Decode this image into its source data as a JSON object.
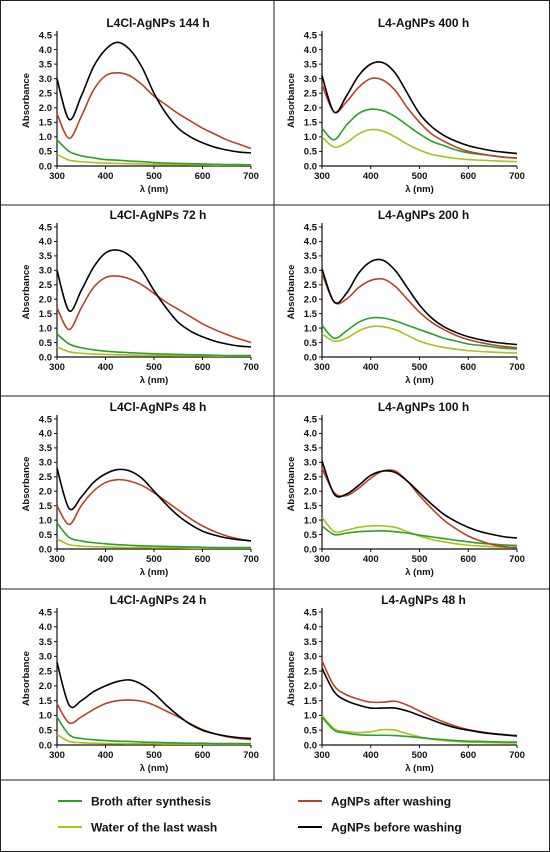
{
  "legend": [
    {
      "label": "Broth after synthesis",
      "color": "#2aa02a",
      "series": "broth"
    },
    {
      "label": "AgNPs after washing",
      "color": "#b5432a",
      "series": "after"
    },
    {
      "label": "Water of the last wash",
      "color": "#a8c020",
      "series": "water"
    },
    {
      "label": "AgNPs before washing",
      "color": "#000000",
      "series": "before"
    }
  ],
  "chart_data": [
    {
      "type": "line",
      "title": "L4Cl-AgNPs 144 h",
      "xlabel": "λ (nm)",
      "ylabel": "Absorbance",
      "xlim": [
        300,
        700
      ],
      "ylim": [
        0,
        4.5
      ],
      "xticks": [
        300,
        400,
        500,
        600,
        700
      ],
      "yticks": [
        0.0,
        0.5,
        1.0,
        1.5,
        2.0,
        2.5,
        3.0,
        3.5,
        4.0,
        4.5
      ],
      "x": [
        300,
        325,
        350,
        375,
        400,
        425,
        450,
        475,
        500,
        525,
        550,
        575,
        600,
        625,
        650,
        675,
        700
      ],
      "series": [
        {
          "name": "AgNPs before washing",
          "key": "before",
          "values": [
            3.0,
            1.6,
            2.4,
            3.4,
            4.0,
            4.25,
            4.0,
            3.4,
            2.5,
            1.8,
            1.3,
            1.0,
            0.8,
            0.65,
            0.55,
            0.48,
            0.45
          ]
        },
        {
          "name": "AgNPs after washing",
          "key": "after",
          "values": [
            1.8,
            0.95,
            1.7,
            2.6,
            3.1,
            3.2,
            3.1,
            2.8,
            2.4,
            2.1,
            1.8,
            1.55,
            1.3,
            1.1,
            0.9,
            0.75,
            0.6
          ]
        },
        {
          "name": "Broth after synthesis",
          "key": "broth",
          "values": [
            0.9,
            0.5,
            0.35,
            0.28,
            0.22,
            0.2,
            0.17,
            0.15,
            0.12,
            0.1,
            0.09,
            0.08,
            0.07,
            0.06,
            0.05,
            0.05,
            0.04
          ]
        },
        {
          "name": "Water of the last wash",
          "key": "water",
          "values": [
            0.4,
            0.2,
            0.15,
            0.12,
            0.1,
            0.09,
            0.08,
            0.07,
            0.06,
            0.05,
            0.05,
            0.04,
            0.04,
            0.03,
            0.03,
            0.03,
            0.03
          ]
        }
      ]
    },
    {
      "type": "line",
      "title": "L4-AgNPs 400 h",
      "xlabel": "λ (nm)",
      "ylabel": "Absorbance",
      "xlim": [
        300,
        700
      ],
      "ylim": [
        0,
        4.5
      ],
      "xticks": [
        300,
        400,
        500,
        600,
        700
      ],
      "yticks": [
        0.0,
        0.5,
        1.0,
        1.5,
        2.0,
        2.5,
        3.0,
        3.5,
        4.0,
        4.5
      ],
      "x": [
        300,
        325,
        350,
        375,
        400,
        425,
        450,
        475,
        500,
        525,
        550,
        575,
        600,
        625,
        650,
        675,
        700
      ],
      "series": [
        {
          "name": "AgNPs before washing",
          "key": "before",
          "values": [
            3.1,
            1.85,
            2.4,
            3.1,
            3.5,
            3.55,
            3.2,
            2.5,
            1.8,
            1.35,
            1.05,
            0.85,
            0.7,
            0.6,
            0.52,
            0.47,
            0.43
          ]
        },
        {
          "name": "AgNPs after washing",
          "key": "after",
          "values": [
            2.8,
            1.85,
            2.2,
            2.7,
            3.0,
            2.95,
            2.6,
            2.0,
            1.5,
            1.1,
            0.85,
            0.65,
            0.5,
            0.42,
            0.35,
            0.3,
            0.27
          ]
        },
        {
          "name": "Broth after synthesis",
          "key": "broth",
          "values": [
            1.3,
            0.9,
            1.4,
            1.8,
            1.95,
            1.9,
            1.7,
            1.4,
            1.1,
            0.85,
            0.7,
            0.55,
            0.45,
            0.4,
            0.35,
            0.3,
            0.28
          ]
        },
        {
          "name": "Water of the last wash",
          "key": "water",
          "values": [
            1.0,
            0.65,
            0.8,
            1.1,
            1.25,
            1.2,
            1.0,
            0.75,
            0.55,
            0.4,
            0.32,
            0.26,
            0.22,
            0.2,
            0.18,
            0.16,
            0.15
          ]
        }
      ]
    },
    {
      "type": "line",
      "title": "L4Cl-AgNPs 72 h",
      "xlabel": "λ (nm)",
      "ylabel": "Absorbance",
      "xlim": [
        300,
        700
      ],
      "ylim": [
        0,
        4.5
      ],
      "xticks": [
        300,
        400,
        500,
        600,
        700
      ],
      "yticks": [
        0.0,
        0.5,
        1.0,
        1.5,
        2.0,
        2.5,
        3.0,
        3.5,
        4.0,
        4.5
      ],
      "x": [
        300,
        325,
        350,
        375,
        400,
        425,
        450,
        475,
        500,
        525,
        550,
        575,
        600,
        625,
        650,
        675,
        700
      ],
      "series": [
        {
          "name": "AgNPs before washing",
          "key": "before",
          "values": [
            3.0,
            1.6,
            2.3,
            3.1,
            3.6,
            3.7,
            3.5,
            3.0,
            2.3,
            1.7,
            1.2,
            0.9,
            0.7,
            0.55,
            0.45,
            0.38,
            0.35
          ]
        },
        {
          "name": "AgNPs after washing",
          "key": "after",
          "values": [
            1.7,
            0.95,
            1.7,
            2.4,
            2.75,
            2.8,
            2.7,
            2.5,
            2.2,
            1.9,
            1.65,
            1.4,
            1.15,
            0.95,
            0.78,
            0.63,
            0.5
          ]
        },
        {
          "name": "Broth after synthesis",
          "key": "broth",
          "values": [
            0.8,
            0.45,
            0.32,
            0.25,
            0.2,
            0.17,
            0.15,
            0.13,
            0.11,
            0.1,
            0.09,
            0.08,
            0.07,
            0.06,
            0.05,
            0.05,
            0.05
          ]
        },
        {
          "name": "Water of the last wash",
          "key": "water",
          "values": [
            0.35,
            0.18,
            0.13,
            0.1,
            0.09,
            0.08,
            0.07,
            0.06,
            0.05,
            0.05,
            0.04,
            0.04,
            0.04,
            0.03,
            0.03,
            0.03,
            0.03
          ]
        }
      ]
    },
    {
      "type": "line",
      "title": "L4-AgNPs 200 h",
      "xlabel": "λ (nm)",
      "ylabel": "Absorbance",
      "xlim": [
        300,
        700
      ],
      "ylim": [
        0,
        4.5
      ],
      "xticks": [
        300,
        400,
        500,
        600,
        700
      ],
      "yticks": [
        0.0,
        0.5,
        1.0,
        1.5,
        2.0,
        2.5,
        3.0,
        3.5,
        4.0,
        4.5
      ],
      "x": [
        300,
        325,
        350,
        375,
        400,
        425,
        450,
        475,
        500,
        525,
        550,
        575,
        600,
        625,
        650,
        675,
        700
      ],
      "series": [
        {
          "name": "AgNPs before washing",
          "key": "before",
          "values": [
            3.05,
            1.9,
            2.2,
            2.9,
            3.3,
            3.35,
            3.0,
            2.4,
            1.8,
            1.35,
            1.05,
            0.85,
            0.7,
            0.6,
            0.52,
            0.47,
            0.43
          ]
        },
        {
          "name": "AgNPs after washing",
          "key": "after",
          "values": [
            2.9,
            1.9,
            2.0,
            2.4,
            2.65,
            2.7,
            2.45,
            2.0,
            1.55,
            1.2,
            0.95,
            0.75,
            0.6,
            0.5,
            0.42,
            0.36,
            0.32
          ]
        },
        {
          "name": "Broth after synthesis",
          "key": "broth",
          "values": [
            1.1,
            0.65,
            0.9,
            1.2,
            1.35,
            1.35,
            1.25,
            1.1,
            0.95,
            0.8,
            0.65,
            0.55,
            0.45,
            0.4,
            0.35,
            0.3,
            0.28
          ]
        },
        {
          "name": "Water of the last wash",
          "key": "water",
          "values": [
            0.8,
            0.55,
            0.65,
            0.9,
            1.05,
            1.05,
            0.95,
            0.75,
            0.55,
            0.42,
            0.33,
            0.27,
            0.22,
            0.19,
            0.17,
            0.15,
            0.14
          ]
        }
      ]
    },
    {
      "type": "line",
      "title": "L4Cl-AgNPs 48 h",
      "xlabel": "λ (nm)",
      "ylabel": "Absorbance",
      "xlim": [
        300,
        700
      ],
      "ylim": [
        0,
        4.5
      ],
      "xticks": [
        300,
        400,
        500,
        600,
        700
      ],
      "yticks": [
        0.0,
        0.5,
        1.0,
        1.5,
        2.0,
        2.5,
        3.0,
        3.5,
        4.0,
        4.5
      ],
      "x": [
        300,
        325,
        350,
        375,
        400,
        425,
        450,
        475,
        500,
        525,
        550,
        575,
        600,
        625,
        650,
        675,
        700
      ],
      "series": [
        {
          "name": "AgNPs before washing",
          "key": "before",
          "values": [
            2.8,
            1.4,
            1.8,
            2.3,
            2.6,
            2.75,
            2.7,
            2.45,
            2.0,
            1.55,
            1.15,
            0.85,
            0.62,
            0.48,
            0.38,
            0.32,
            0.28
          ]
        },
        {
          "name": "AgNPs after washing",
          "key": "after",
          "values": [
            1.5,
            0.85,
            1.5,
            2.0,
            2.3,
            2.4,
            2.35,
            2.2,
            1.95,
            1.65,
            1.35,
            1.05,
            0.8,
            0.6,
            0.45,
            0.35,
            0.28
          ]
        },
        {
          "name": "Broth after synthesis",
          "key": "broth",
          "values": [
            0.9,
            0.4,
            0.28,
            0.22,
            0.18,
            0.15,
            0.13,
            0.11,
            0.1,
            0.09,
            0.08,
            0.07,
            0.06,
            0.05,
            0.05,
            0.05,
            0.05
          ]
        },
        {
          "name": "Water of the last wash",
          "key": "water",
          "values": [
            0.35,
            0.15,
            0.1,
            0.08,
            0.07,
            0.06,
            0.05,
            0.05,
            0.04,
            0.04,
            0.04,
            0.03,
            0.03,
            0.03,
            0.03,
            0.03,
            0.03
          ]
        }
      ]
    },
    {
      "type": "line",
      "title": "L4-AgNPs 100 h",
      "xlabel": "λ (nm)",
      "ylabel": "Absorbance",
      "xlim": [
        300,
        700
      ],
      "ylim": [
        0,
        4.5
      ],
      "xticks": [
        300,
        400,
        500,
        600,
        700
      ],
      "yticks": [
        0.0,
        0.5,
        1.0,
        1.5,
        2.0,
        2.5,
        3.0,
        3.5,
        4.0,
        4.5
      ],
      "x": [
        300,
        325,
        350,
        375,
        400,
        425,
        450,
        475,
        500,
        525,
        550,
        575,
        600,
        625,
        650,
        675,
        700
      ],
      "series": [
        {
          "name": "AgNPs before washing",
          "key": "before",
          "values": [
            3.05,
            1.9,
            1.9,
            2.2,
            2.55,
            2.7,
            2.65,
            2.35,
            1.95,
            1.55,
            1.2,
            0.95,
            0.75,
            0.6,
            0.5,
            0.42,
            0.38
          ]
        },
        {
          "name": "AgNPs after washing",
          "key": "after",
          "values": [
            2.8,
            1.95,
            1.85,
            2.1,
            2.45,
            2.7,
            2.7,
            2.35,
            1.85,
            1.4,
            1.0,
            0.7,
            0.45,
            0.28,
            0.15,
            0.08,
            0.05
          ]
        },
        {
          "name": "Broth after synthesis",
          "key": "broth",
          "values": [
            0.8,
            0.5,
            0.55,
            0.6,
            0.62,
            0.63,
            0.6,
            0.55,
            0.48,
            0.42,
            0.36,
            0.3,
            0.25,
            0.2,
            0.17,
            0.14,
            0.12
          ]
        },
        {
          "name": "Water of the last wash",
          "key": "water",
          "values": [
            1.1,
            0.6,
            0.65,
            0.75,
            0.8,
            0.8,
            0.75,
            0.6,
            0.45,
            0.33,
            0.25,
            0.18,
            0.13,
            0.1,
            0.08,
            0.06,
            0.05
          ]
        }
      ]
    },
    {
      "type": "line",
      "title": "L4Cl-AgNPs 24 h",
      "xlabel": "λ (nm)",
      "ylabel": "Absorbance",
      "xlim": [
        300,
        700
      ],
      "ylim": [
        0,
        4.5
      ],
      "xticks": [
        300,
        400,
        500,
        600,
        700
      ],
      "yticks": [
        0.0,
        0.5,
        1.0,
        1.5,
        2.0,
        2.5,
        3.0,
        3.5,
        4.0,
        4.5
      ],
      "x": [
        300,
        325,
        350,
        375,
        400,
        425,
        450,
        475,
        500,
        525,
        550,
        575,
        600,
        625,
        650,
        675,
        700
      ],
      "series": [
        {
          "name": "AgNPs before washing",
          "key": "before",
          "values": [
            2.8,
            1.35,
            1.5,
            1.8,
            2.0,
            2.15,
            2.2,
            2.05,
            1.75,
            1.35,
            1.0,
            0.7,
            0.5,
            0.38,
            0.3,
            0.25,
            0.22
          ]
        },
        {
          "name": "AgNPs after washing",
          "key": "after",
          "values": [
            1.4,
            0.75,
            0.95,
            1.2,
            1.4,
            1.5,
            1.52,
            1.48,
            1.35,
            1.15,
            0.95,
            0.72,
            0.52,
            0.38,
            0.28,
            0.22,
            0.18
          ]
        },
        {
          "name": "Broth after synthesis",
          "key": "broth",
          "values": [
            0.95,
            0.35,
            0.22,
            0.18,
            0.15,
            0.13,
            0.12,
            0.1,
            0.09,
            0.08,
            0.07,
            0.06,
            0.06,
            0.05,
            0.05,
            0.05,
            0.05
          ]
        },
        {
          "name": "Water of the last wash",
          "key": "water",
          "values": [
            0.35,
            0.12,
            0.08,
            0.06,
            0.05,
            0.05,
            0.04,
            0.04,
            0.04,
            0.03,
            0.03,
            0.03,
            0.03,
            0.03,
            0.03,
            0.03,
            0.03
          ]
        }
      ]
    },
    {
      "type": "line",
      "title": "L4-AgNPs 48 h",
      "xlabel": "λ (nm)",
      "ylabel": "Absorbance",
      "xlim": [
        300,
        700
      ],
      "ylim": [
        0,
        4.5
      ],
      "xticks": [
        300,
        400,
        500,
        600,
        700
      ],
      "yticks": [
        0.0,
        0.5,
        1.0,
        1.5,
        2.0,
        2.5,
        3.0,
        3.5,
        4.0,
        4.5
      ],
      "x": [
        300,
        325,
        350,
        375,
        400,
        425,
        450,
        475,
        500,
        525,
        550,
        575,
        600,
        625,
        650,
        675,
        700
      ],
      "series": [
        {
          "name": "AgNPs before washing",
          "key": "before",
          "values": [
            2.6,
            1.8,
            1.5,
            1.35,
            1.25,
            1.25,
            1.25,
            1.15,
            1.0,
            0.85,
            0.7,
            0.58,
            0.5,
            0.43,
            0.38,
            0.34,
            0.3
          ]
        },
        {
          "name": "AgNPs after washing",
          "key": "after",
          "values": [
            2.85,
            2.0,
            1.7,
            1.55,
            1.45,
            1.45,
            1.48,
            1.35,
            1.15,
            0.95,
            0.78,
            0.63,
            0.52,
            0.45,
            0.39,
            0.35,
            0.32
          ]
        },
        {
          "name": "Broth after synthesis",
          "key": "broth",
          "values": [
            0.95,
            0.5,
            0.4,
            0.35,
            0.33,
            0.33,
            0.32,
            0.29,
            0.25,
            0.21,
            0.18,
            0.15,
            0.13,
            0.12,
            0.11,
            0.1,
            0.1
          ]
        },
        {
          "name": "Water of the last wash",
          "key": "water",
          "values": [
            1.0,
            0.55,
            0.45,
            0.42,
            0.45,
            0.52,
            0.5,
            0.38,
            0.28,
            0.2,
            0.15,
            0.12,
            0.1,
            0.09,
            0.08,
            0.07,
            0.07
          ]
        }
      ]
    }
  ]
}
